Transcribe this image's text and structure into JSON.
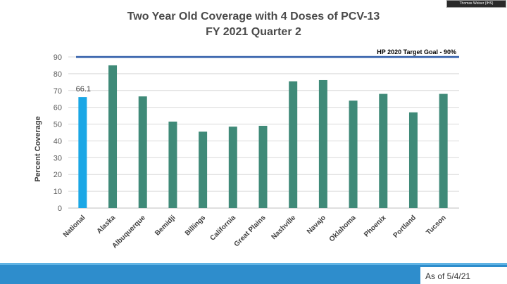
{
  "badge": {
    "label": "Thomas Weiser (IHS)"
  },
  "footer": {
    "as_of": "As of 5/4/21"
  },
  "colors": {
    "national": "#1aa7e6",
    "area": "#3f8a78",
    "target_line": "#2d5aa8",
    "grid": "#d9d9d9",
    "axis_text": "#595959"
  },
  "chart_data": {
    "type": "bar",
    "title": "Two Year Old Coverage with 4 Doses of PCV-13",
    "subtitle": "FY 2021 Quarter 2",
    "xlabel": "",
    "ylabel": "Percent Coverage",
    "ylim": [
      0,
      90
    ],
    "yticks": [
      0,
      10,
      20,
      30,
      40,
      50,
      60,
      70,
      80,
      90
    ],
    "grid": true,
    "categories": [
      "National",
      "Alaska",
      "Albuquerque",
      "Bemidji",
      "Billings",
      "California",
      "Great Plains",
      "Nashville",
      "Navajo",
      "Oklahoma",
      "Phoenix",
      "Portland",
      "Tucson"
    ],
    "values": [
      66.1,
      85,
      66.5,
      51.5,
      45.5,
      48.5,
      49,
      75.5,
      76.2,
      64,
      68,
      57,
      68
    ],
    "data_labels": [
      {
        "category": "National",
        "label": "66.1"
      }
    ],
    "target": {
      "value": 90,
      "label": "HP 2020 Target Goal - 90%"
    }
  }
}
